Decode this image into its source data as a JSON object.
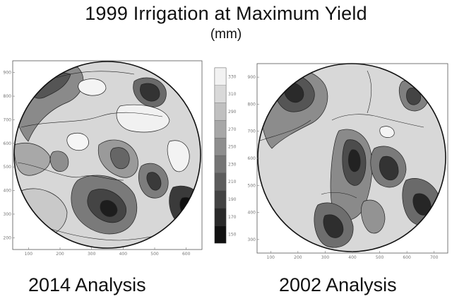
{
  "title": "1999 Irrigation at Maximum Yield",
  "subtitle": "(mm)",
  "chart_data": {
    "type": "heatmap",
    "panels": [
      {
        "caption": "2014 Analysis",
        "x_ticks": [
          "100",
          "200",
          "300",
          "400",
          "500",
          "600"
        ],
        "y_ticks": [
          "900",
          "800",
          "700",
          "600",
          "500",
          "400",
          "300",
          "200"
        ]
      },
      {
        "caption": "2002 Analysis",
        "x_ticks": [
          "100",
          "200",
          "300",
          "400",
          "500",
          "600",
          "700"
        ],
        "y_ticks": [
          "900",
          "800",
          "700",
          "600",
          "500",
          "400",
          "300"
        ]
      }
    ],
    "colorbar": {
      "ticks": [
        "330",
        "310",
        "290",
        "270",
        "250",
        "230",
        "210",
        "190",
        "170",
        "150"
      ],
      "range": [
        150,
        330
      ],
      "colors": {
        "low": "#111111",
        "high": "#f2f2f2"
      }
    }
  }
}
